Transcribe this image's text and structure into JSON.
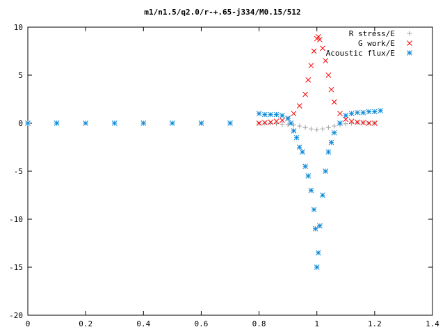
{
  "chart_data": {
    "type": "scatter",
    "title": "m1/n1.5/q2.0/r-+.65-j334/M0.15/512",
    "xlabel": "",
    "ylabel": "",
    "xlim": [
      0,
      1.4
    ],
    "ylim": [
      -20,
      10
    ],
    "x_ticks": [
      "0",
      "0.2",
      "0.4",
      "0.6",
      "0.8",
      "1",
      "1.2",
      "1.4"
    ],
    "y_ticks": [
      "10",
      "5",
      "0",
      "-5",
      "-10",
      "-15",
      "-20"
    ],
    "grid": false,
    "legend_position": "top-right",
    "series": [
      {
        "name": "R stress/E",
        "marker": "plus",
        "color": "#a0a0a0",
        "points": [
          [
            0.8,
            0.0
          ],
          [
            0.82,
            0.0
          ],
          [
            0.84,
            0.0
          ],
          [
            0.86,
            -0.05
          ],
          [
            0.88,
            -0.1
          ],
          [
            0.9,
            -0.15
          ],
          [
            0.92,
            -0.2
          ],
          [
            0.94,
            -0.3
          ],
          [
            0.96,
            -0.45
          ],
          [
            0.98,
            -0.6
          ],
          [
            1.0,
            -0.7
          ],
          [
            1.02,
            -0.6
          ],
          [
            1.04,
            -0.45
          ],
          [
            1.06,
            -0.3
          ],
          [
            1.08,
            -0.15
          ],
          [
            1.1,
            -0.05
          ],
          [
            1.12,
            0.0
          ],
          [
            1.14,
            0.05
          ],
          [
            1.16,
            0.05
          ],
          [
            1.18,
            0.0
          ],
          [
            1.2,
            0.0
          ]
        ]
      },
      {
        "name": "G work/E",
        "marker": "cross",
        "color": "#ff0000",
        "points": [
          [
            0.8,
            0.0
          ],
          [
            0.82,
            0.05
          ],
          [
            0.84,
            0.1
          ],
          [
            0.86,
            0.2
          ],
          [
            0.88,
            0.3
          ],
          [
            0.9,
            0.5
          ],
          [
            0.92,
            1.0
          ],
          [
            0.94,
            1.8
          ],
          [
            0.96,
            3.0
          ],
          [
            0.97,
            4.5
          ],
          [
            0.98,
            6.0
          ],
          [
            0.99,
            7.5
          ],
          [
            1.0,
            8.8
          ],
          [
            1.005,
            9.0
          ],
          [
            1.01,
            8.7
          ],
          [
            1.02,
            7.8
          ],
          [
            1.03,
            6.5
          ],
          [
            1.04,
            5.0
          ],
          [
            1.05,
            3.5
          ],
          [
            1.06,
            2.2
          ],
          [
            1.08,
            1.0
          ],
          [
            1.1,
            0.4
          ],
          [
            1.12,
            0.2
          ],
          [
            1.14,
            0.1
          ],
          [
            1.16,
            0.05
          ],
          [
            1.18,
            0.0
          ],
          [
            1.2,
            0.0
          ]
        ]
      },
      {
        "name": "Acoustic flux/E",
        "marker": "star",
        "color": "#0a88d8",
        "points": [
          [
            0.0,
            0.0
          ],
          [
            0.1,
            0.0
          ],
          [
            0.2,
            0.0
          ],
          [
            0.3,
            0.0
          ],
          [
            0.4,
            0.0
          ],
          [
            0.5,
            0.0
          ],
          [
            0.6,
            0.0
          ],
          [
            0.7,
            0.0
          ],
          [
            0.8,
            1.0
          ],
          [
            0.82,
            0.9
          ],
          [
            0.84,
            0.9
          ],
          [
            0.86,
            0.9
          ],
          [
            0.88,
            0.8
          ],
          [
            0.9,
            0.5
          ],
          [
            0.91,
            0.0
          ],
          [
            0.92,
            -0.8
          ],
          [
            0.93,
            -1.5
          ],
          [
            0.94,
            -2.5
          ],
          [
            0.95,
            -3.0
          ],
          [
            0.96,
            -4.5
          ],
          [
            0.97,
            -5.5
          ],
          [
            0.98,
            -7.0
          ],
          [
            0.99,
            -9.0
          ],
          [
            0.995,
            -11.0
          ],
          [
            1.0,
            -15.0
          ],
          [
            1.005,
            -13.5
          ],
          [
            1.01,
            -10.7
          ],
          [
            1.02,
            -7.5
          ],
          [
            1.03,
            -5.0
          ],
          [
            1.04,
            -3.0
          ],
          [
            1.05,
            -2.0
          ],
          [
            1.06,
            -1.0
          ],
          [
            1.08,
            0.0
          ],
          [
            1.1,
            0.8
          ],
          [
            1.12,
            1.0
          ],
          [
            1.14,
            1.1
          ],
          [
            1.16,
            1.1
          ],
          [
            1.18,
            1.2
          ],
          [
            1.2,
            1.2
          ],
          [
            1.22,
            1.3
          ]
        ]
      }
    ]
  }
}
